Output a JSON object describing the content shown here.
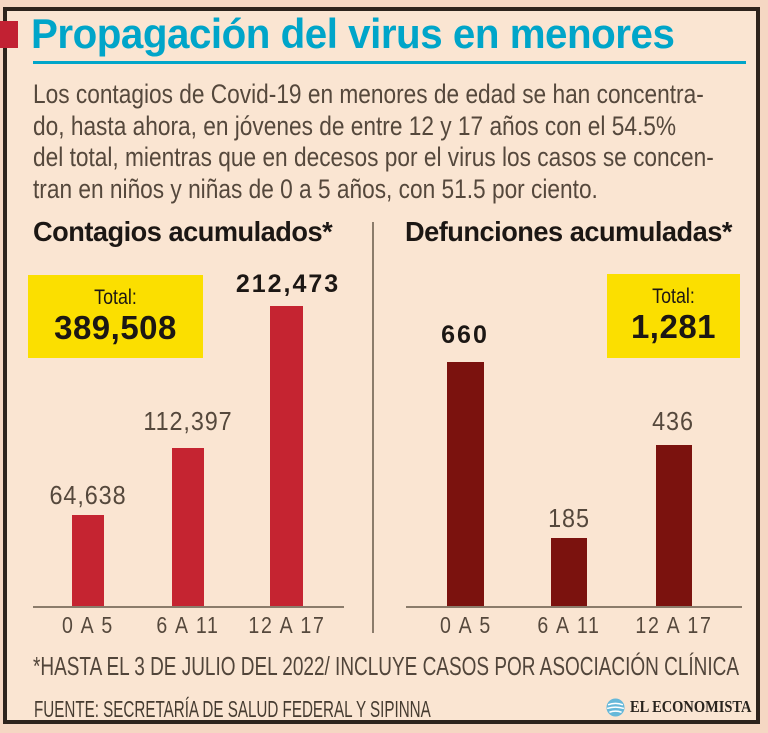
{
  "page": {
    "title": "Propagación del virus en menores",
    "intro_lines": [
      "Los contagios de Covid-19 en menores de edad se han concentra-",
      "do, hasta ahora, en jóvenes de entre 12 y 17 años con el 54.5%",
      "del total, mientras que en decesos por el virus los casos se concen-",
      "tran en niños y niñas de 0 a 5 años, con 51.5 por ciento."
    ],
    "footnote": "*HASTA EL 3 DE JULIO DEL 2022/ INCLUYE CASOS POR ASOCIACIÓN CLÍNICA",
    "source": "FUENTE: SECRETARÍA DE SALUD FEDERAL Y SIPINNA",
    "brand": "EL ECONOMISTA"
  },
  "colors": {
    "bg_cream": "#fae5d2",
    "bg_outer": "#f5d7c3",
    "border_dark": "#2d231c",
    "title_cyan": "#00a5c9",
    "accent_red": "#c22133",
    "text_dark": "#1c1714",
    "text_soft": "#55483c",
    "yellow": "#fbdf00",
    "axis_line": "#8b7c6b",
    "logo_blue": "#66b8d9"
  },
  "chart_data": [
    {
      "type": "bar",
      "title": "Contagios acumulados*",
      "categories": [
        "0 A 5",
        "6 A 11",
        "12 A 17"
      ],
      "values": [
        64638,
        112397,
        212473
      ],
      "value_labels": [
        "64,638",
        "112,397",
        "212,473"
      ],
      "total_label": "Total:",
      "total_value": "389,508",
      "bar_color": "#c52431",
      "ylim": [
        0,
        220000
      ],
      "grid": false,
      "legend": false,
      "value_label_position": "above-bars"
    },
    {
      "type": "bar",
      "title": "Defunciones acumuladas*",
      "categories": [
        "0 A 5",
        "6 A 11",
        "12 A 17"
      ],
      "values": [
        660,
        185,
        436
      ],
      "value_labels": [
        "660",
        "185",
        "436"
      ],
      "total_label": "Total:",
      "total_value": "1,281",
      "bar_color": "#7b120e",
      "ylim": [
        0,
        700
      ],
      "grid": false,
      "legend": false,
      "value_label_position": "above-bars"
    }
  ]
}
